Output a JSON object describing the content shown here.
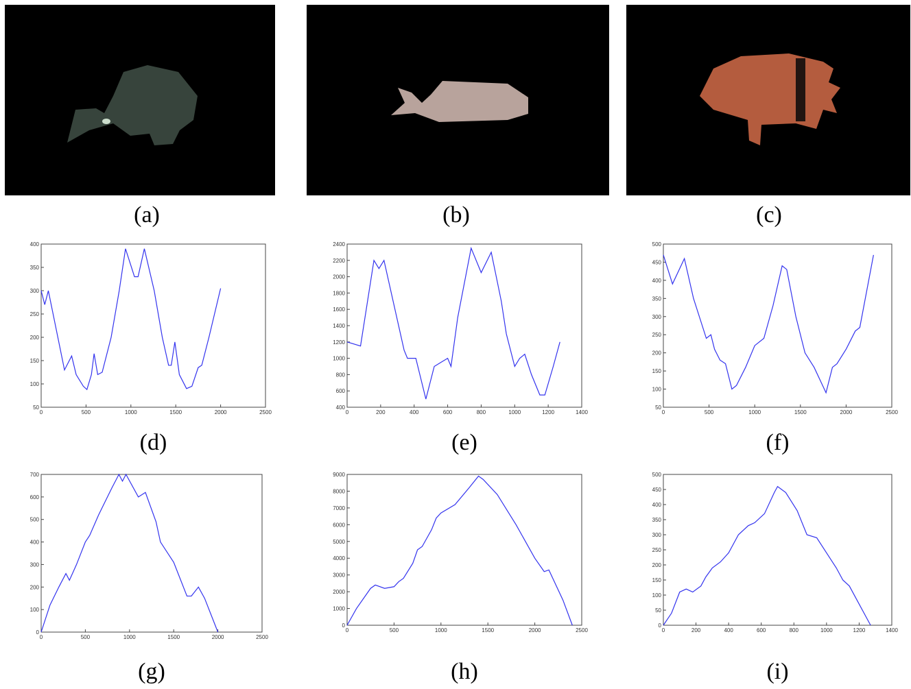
{
  "figures": [
    {
      "caption": "(a)"
    },
    {
      "caption": "(b)"
    },
    {
      "caption": "(c)"
    }
  ],
  "chart_data": [
    {
      "type": "line",
      "title": "(d)",
      "xlim": [
        0,
        2500
      ],
      "xticks": [
        0,
        500,
        1000,
        1500,
        2000,
        2500
      ],
      "ylim": [
        50,
        400
      ],
      "yticks": [
        50,
        100,
        150,
        200,
        250,
        300,
        350,
        400
      ],
      "x": [
        0,
        40,
        80,
        260,
        340,
        390,
        470,
        510,
        560,
        590,
        630,
        680,
        780,
        870,
        940,
        1040,
        1080,
        1150,
        1260,
        1350,
        1420,
        1450,
        1490,
        1540,
        1620,
        1680,
        1750,
        1790,
        1870,
        2000
      ],
      "series": [
        {
          "color": "#3333ee",
          "values": [
            300,
            270,
            300,
            130,
            160,
            120,
            95,
            88,
            120,
            165,
            120,
            125,
            200,
            300,
            390,
            330,
            330,
            390,
            300,
            200,
            140,
            140,
            190,
            120,
            90,
            95,
            135,
            140,
            200,
            305
          ]
        }
      ]
    },
    {
      "type": "line",
      "title": "(e)",
      "xlim": [
        0,
        1400
      ],
      "xticks": [
        0,
        200,
        400,
        600,
        800,
        1000,
        1200,
        1400
      ],
      "ylim": [
        400,
        2400
      ],
      "yticks": [
        400,
        600,
        800,
        1000,
        1200,
        1400,
        1600,
        1800,
        2000,
        2200,
        2400
      ],
      "x": [
        0,
        80,
        160,
        190,
        220,
        340,
        360,
        410,
        470,
        520,
        560,
        600,
        620,
        660,
        740,
        800,
        860,
        920,
        950,
        1000,
        1030,
        1060,
        1100,
        1150,
        1180,
        1230,
        1270
      ],
      "series": [
        {
          "color": "#3333ee",
          "values": [
            1200,
            1150,
            2200,
            2100,
            2200,
            1100,
            1000,
            1000,
            500,
            900,
            950,
            1000,
            900,
            1500,
            2350,
            2050,
            2300,
            1700,
            1300,
            900,
            1000,
            1050,
            800,
            550,
            550,
            900,
            1200
          ]
        }
      ]
    },
    {
      "type": "line",
      "title": "(f)",
      "xlim": [
        0,
        2500
      ],
      "xticks": [
        0,
        500,
        1000,
        1500,
        2000,
        2500
      ],
      "ylim": [
        50,
        500
      ],
      "yticks": [
        50,
        100,
        150,
        200,
        250,
        300,
        350,
        400,
        450,
        500
      ],
      "x": [
        0,
        100,
        230,
        330,
        470,
        520,
        560,
        620,
        680,
        750,
        800,
        900,
        1000,
        1100,
        1200,
        1300,
        1350,
        1450,
        1550,
        1650,
        1780,
        1850,
        1900,
        2000,
        2100,
        2150,
        2300
      ],
      "series": [
        {
          "color": "#3333ee",
          "values": [
            470,
            390,
            460,
            350,
            240,
            250,
            210,
            180,
            170,
            100,
            110,
            160,
            220,
            240,
            330,
            440,
            430,
            300,
            200,
            160,
            90,
            160,
            170,
            210,
            260,
            270,
            470
          ]
        }
      ]
    },
    {
      "type": "line",
      "title": "(g)",
      "xlim": [
        0,
        2500
      ],
      "xticks": [
        0,
        500,
        1000,
        1500,
        2000,
        2500
      ],
      "ylim": [
        0,
        700
      ],
      "yticks": [
        0,
        100,
        200,
        300,
        400,
        500,
        600,
        700
      ],
      "x": [
        0,
        100,
        200,
        280,
        320,
        400,
        500,
        550,
        650,
        800,
        880,
        920,
        960,
        1100,
        1180,
        1300,
        1350,
        1450,
        1500,
        1650,
        1700,
        1780,
        1850,
        2000
      ],
      "series": [
        {
          "color": "#3333ee",
          "values": [
            0,
            120,
            200,
            260,
            230,
            300,
            400,
            430,
            520,
            640,
            700,
            670,
            700,
            600,
            620,
            490,
            400,
            340,
            310,
            160,
            160,
            200,
            150,
            0
          ]
        }
      ]
    },
    {
      "type": "line",
      "title": "(h)",
      "xlim": [
        0,
        2500
      ],
      "xticks": [
        0,
        500,
        1000,
        1500,
        2000,
        2500
      ],
      "ylim": [
        0,
        9000
      ],
      "yticks": [
        0,
        1000,
        2000,
        3000,
        4000,
        5000,
        6000,
        7000,
        8000,
        9000
      ],
      "x": [
        0,
        100,
        200,
        250,
        300,
        400,
        500,
        550,
        600,
        700,
        750,
        800,
        900,
        950,
        1000,
        1150,
        1300,
        1400,
        1450,
        1600,
        1800,
        2000,
        2100,
        2150,
        2300,
        2400
      ],
      "series": [
        {
          "color": "#3333ee",
          "values": [
            0,
            1000,
            1800,
            2200,
            2400,
            2200,
            2300,
            2600,
            2800,
            3700,
            4500,
            4700,
            5700,
            6400,
            6700,
            7200,
            8200,
            8900,
            8700,
            7800,
            6000,
            4000,
            3200,
            3300,
            1500,
            0
          ]
        }
      ]
    },
    {
      "type": "line",
      "title": "(i)",
      "xlim": [
        0,
        1400
      ],
      "xticks": [
        0,
        200,
        400,
        600,
        800,
        1000,
        1200,
        1400
      ],
      "ylim": [
        0,
        500
      ],
      "yticks": [
        0,
        50,
        100,
        150,
        200,
        250,
        300,
        350,
        400,
        450,
        500
      ],
      "x": [
        0,
        50,
        100,
        140,
        180,
        230,
        260,
        300,
        350,
        400,
        460,
        520,
        560,
        620,
        680,
        700,
        750,
        820,
        880,
        940,
        1000,
        1060,
        1100,
        1140,
        1270
      ],
      "series": [
        {
          "color": "#3333ee",
          "values": [
            0,
            40,
            110,
            120,
            110,
            130,
            160,
            190,
            210,
            240,
            300,
            330,
            340,
            370,
            440,
            460,
            440,
            380,
            300,
            290,
            240,
            190,
            150,
            130,
            0
          ]
        }
      ]
    }
  ]
}
